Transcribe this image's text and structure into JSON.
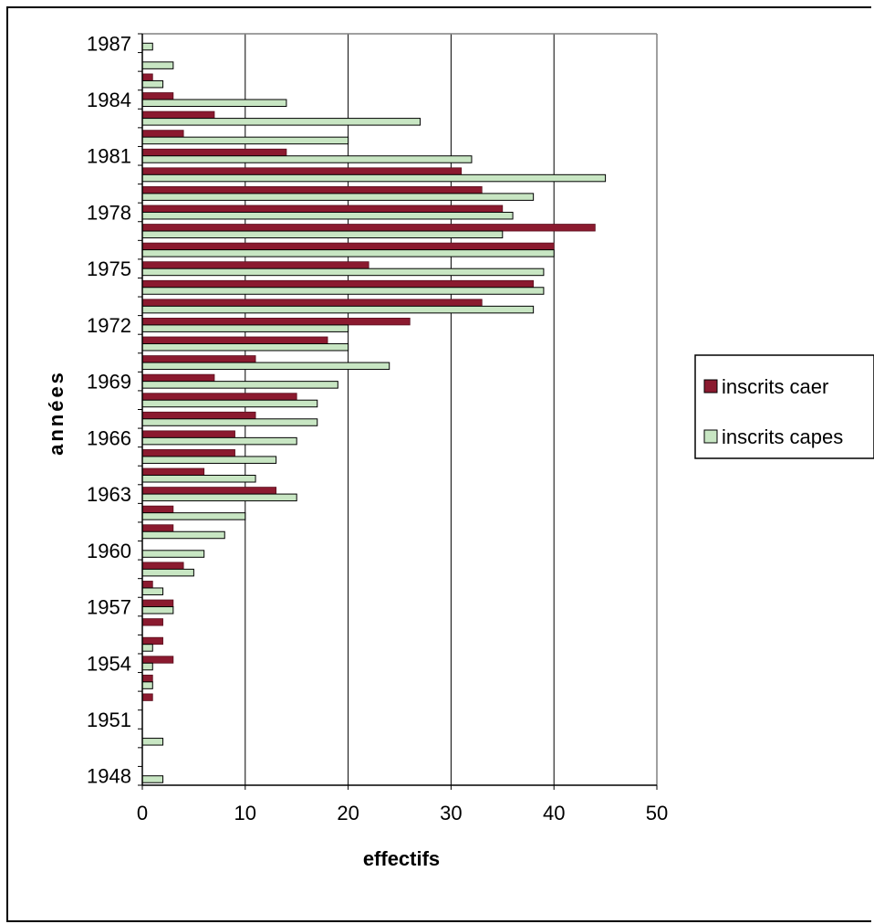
{
  "chart_data": {
    "type": "bar",
    "orientation": "horizontal",
    "categories": [
      1948,
      1949,
      1950,
      1951,
      1952,
      1953,
      1954,
      1955,
      1956,
      1957,
      1958,
      1959,
      1960,
      1961,
      1962,
      1963,
      1964,
      1965,
      1966,
      1967,
      1968,
      1969,
      1970,
      1971,
      1972,
      1973,
      1974,
      1975,
      1976,
      1977,
      1978,
      1979,
      1980,
      1981,
      1982,
      1983,
      1984,
      1985,
      1986,
      1987
    ],
    "y_tick_labels": [
      "1948",
      "1951",
      "1954",
      "1957",
      "1960",
      "1963",
      "1966",
      "1969",
      "1972",
      "1975",
      "1978",
      "1981",
      "1984",
      "1987"
    ],
    "series": [
      {
        "name": "inscrits caer",
        "color": "#8b1a2f",
        "values": [
          0,
          0,
          0,
          0,
          1,
          1,
          3,
          2,
          2,
          3,
          1,
          4,
          0,
          3,
          3,
          13,
          6,
          9,
          9,
          11,
          15,
          7,
          11,
          18,
          26,
          33,
          38,
          22,
          40,
          44,
          35,
          33,
          31,
          14,
          4,
          7,
          3,
          1,
          0,
          0
        ]
      },
      {
        "name": "inscrits capes",
        "color": "#c8e6c3",
        "values": [
          2,
          0,
          2,
          0,
          0,
          1,
          1,
          1,
          0,
          3,
          2,
          5,
          6,
          8,
          10,
          15,
          11,
          13,
          15,
          17,
          17,
          19,
          24,
          20,
          20,
          38,
          39,
          39,
          40,
          35,
          36,
          38,
          45,
          32,
          20,
          27,
          14,
          2,
          3,
          1
        ]
      }
    ],
    "xlabel": "effectifs",
    "ylabel": "années",
    "xlim": [
      0,
      50
    ],
    "x_ticks": [
      0,
      10,
      20,
      30,
      40,
      50
    ],
    "grid": "vertical",
    "legend_position": "right"
  }
}
